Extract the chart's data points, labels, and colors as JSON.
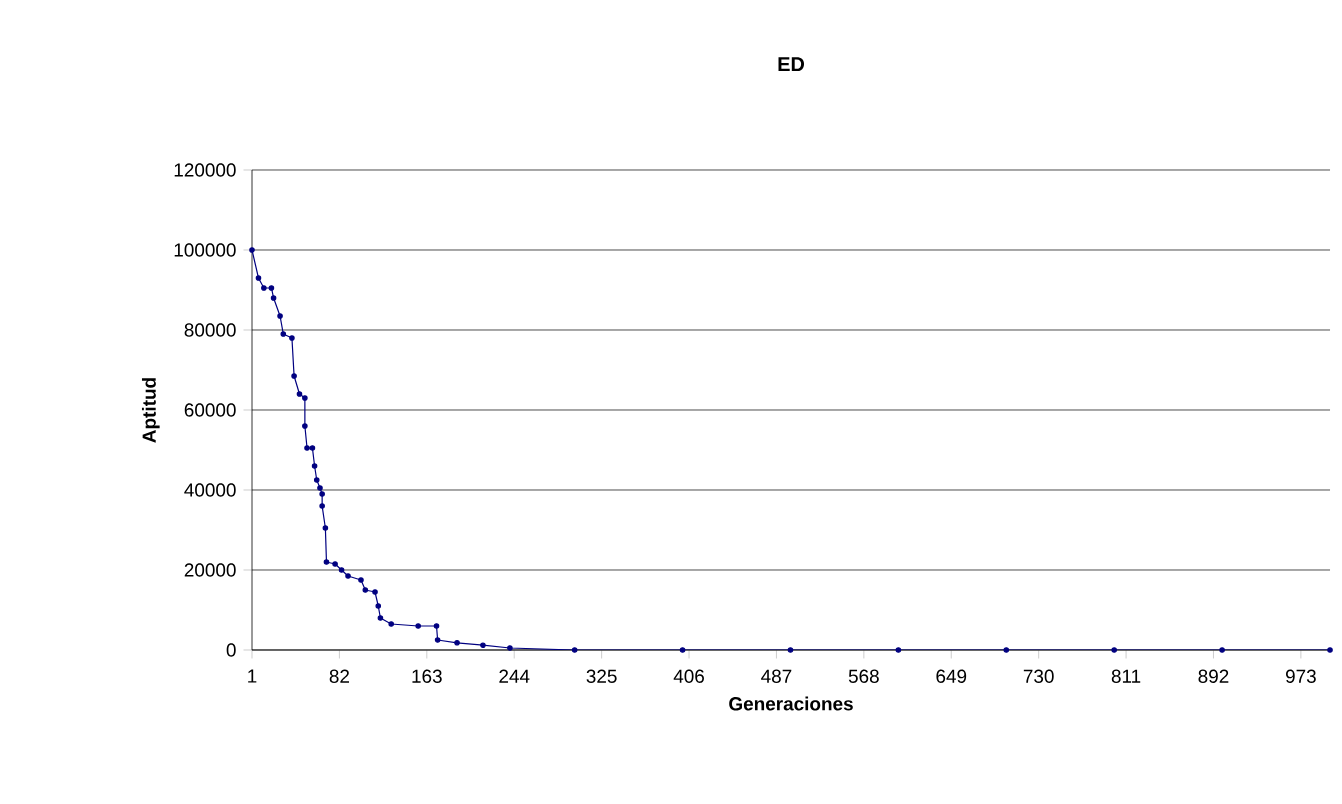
{
  "chart_data": {
    "type": "line",
    "title": "ED",
    "xlabel": "Generaciones",
    "ylabel": "Aptitud",
    "x": [
      1,
      7,
      12,
      19,
      21,
      27,
      30,
      38,
      40,
      45,
      50,
      50,
      52,
      57,
      59,
      61,
      64,
      66,
      66,
      69,
      70,
      78,
      84,
      90,
      102,
      106,
      115,
      118,
      120,
      130,
      155,
      172,
      173,
      191,
      215,
      240,
      300,
      400,
      500,
      600,
      700,
      800,
      900,
      1000
    ],
    "series": [
      {
        "color": "#000080",
        "values": [
          100000,
          93000,
          90500,
          90500,
          88000,
          83500,
          79000,
          78000,
          68500,
          64000,
          63000,
          56000,
          50500,
          50500,
          46000,
          42500,
          40500,
          39000,
          36000,
          30500,
          22000,
          21500,
          20000,
          18500,
          17500,
          15000,
          14500,
          11000,
          8000,
          6500,
          6000,
          6000,
          2500,
          1800,
          1200,
          500,
          0,
          0,
          0,
          0,
          0,
          0,
          0,
          0
        ]
      }
    ],
    "xlim": [
      1,
      1000
    ],
    "xticks": [
      1,
      82,
      163,
      244,
      325,
      406,
      487,
      568,
      649,
      730,
      811,
      892,
      973
    ],
    "ylim": [
      0,
      120000
    ],
    "yticks": [
      0,
      20000,
      40000,
      60000,
      80000,
      100000,
      120000
    ],
    "grid": "y",
    "marker": "circle",
    "line_style": "solid"
  }
}
